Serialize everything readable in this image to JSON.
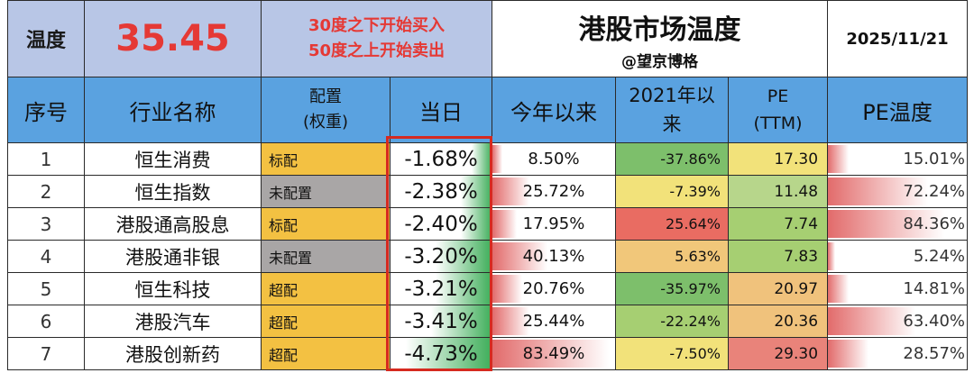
{
  "header": {
    "temp_label": "温度",
    "temp_value": "35.45",
    "rule_line1": "30度之下开始买入",
    "rule_line2": "50度之上开始卖出",
    "title": "港股市场温度",
    "subtitle": "@望京博格",
    "date": "2025/11/21"
  },
  "columns": {
    "idx": "序号",
    "name": "行业名称",
    "alloc_line1": "配置",
    "alloc_line2": "(权重)",
    "day": "当日",
    "ytd": "今年以来",
    "since_line1": "2021年以",
    "since_line2": "来",
    "pe_line1": "PE",
    "pe_line2": "(TTM)",
    "pe_temp": "PE温度"
  },
  "rows": [
    {
      "idx": "1",
      "name": "恒生消费",
      "alloc": "标配",
      "day": "-1.68%",
      "ytd": "8.50%",
      "since": "-37.86%",
      "pe": "17.30",
      "petemp": "15.01%"
    },
    {
      "idx": "2",
      "name": "恒生指数",
      "alloc": "未配置",
      "day": "-2.38%",
      "ytd": "25.72%",
      "since": "-7.39%",
      "pe": "11.48",
      "petemp": "72.24%"
    },
    {
      "idx": "3",
      "name": "港股通高股息",
      "alloc": "标配",
      "day": "-2.40%",
      "ytd": "17.95%",
      "since": "25.64%",
      "pe": "7.74",
      "petemp": "84.36%"
    },
    {
      "idx": "4",
      "name": "港股通非银",
      "alloc": "未配置",
      "day": "-3.20%",
      "ytd": "40.13%",
      "since": "5.63%",
      "pe": "7.83",
      "petemp": "5.24%"
    },
    {
      "idx": "5",
      "name": "恒生科技",
      "alloc": "超配",
      "day": "-3.21%",
      "ytd": "20.76%",
      "since": "-35.97%",
      "pe": "20.97",
      "petemp": "14.81%"
    },
    {
      "idx": "6",
      "name": "港股汽车",
      "alloc": "超配",
      "day": "-3.41%",
      "ytd": "25.44%",
      "since": "-22.24%",
      "pe": "20.36",
      "petemp": "63.40%"
    },
    {
      "idx": "7",
      "name": "港股创新药",
      "alloc": "超配",
      "day": "-4.73%",
      "ytd": "83.49%",
      "since": "-7.50%",
      "pe": "29.30",
      "petemp": "28.57%"
    }
  ],
  "bar_levels": {
    "day": [
      0.2,
      0.3,
      0.3,
      0.55,
      0.55,
      0.6,
      0.85
    ],
    "ytd": [
      0.08,
      0.3,
      0.2,
      0.45,
      0.24,
      0.3,
      0.95
    ],
    "petemp": [
      0.15,
      0.72,
      0.84,
      0.05,
      0.15,
      0.63,
      0.29
    ]
  },
  "cell_colors": {
    "since": [
      "#7dbf6b",
      "#f2e27a",
      "#e96c62",
      "#f1c77a",
      "#7dbf6b",
      "#a6cf72",
      "#f2e27a"
    ],
    "pe": [
      "#f2e27a",
      "#b7d68b",
      "#a6cf72",
      "#a6cf72",
      "#f0c27c",
      "#f0c27c",
      "#e9837a"
    ]
  }
}
